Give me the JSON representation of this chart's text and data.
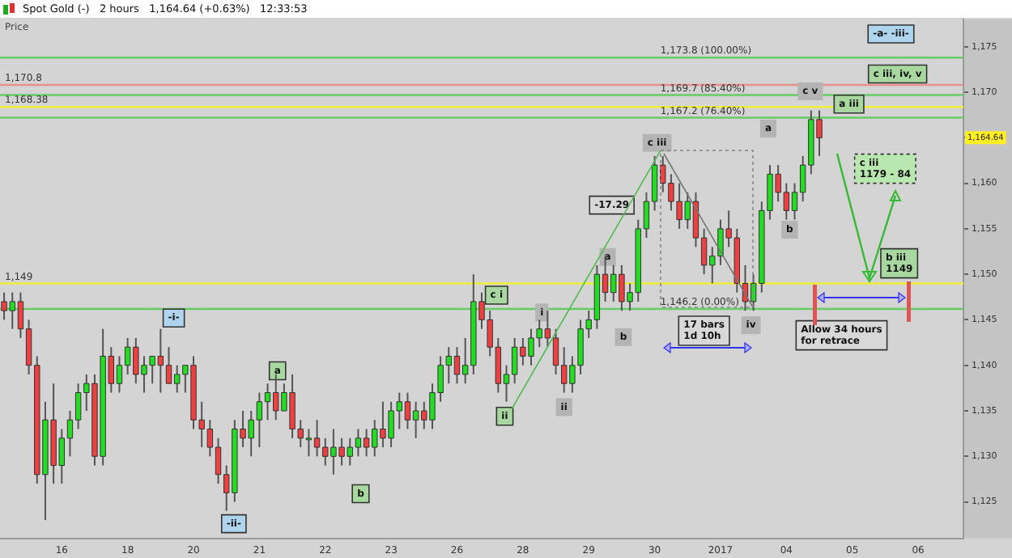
{
  "chart_data": {
    "type": "candlestick",
    "title": "Spot Gold (-)   2 hours   1,164.64 (+0.63%)   12:33:53",
    "ylabel": "Price",
    "categories": [
      null,
      null,
      null,
      null,
      null,
      null,
      null,
      "16",
      null,
      null,
      null,
      null,
      null,
      null,
      null,
      "18",
      null,
      null,
      null,
      null,
      null,
      null,
      null,
      "20",
      null,
      null,
      null,
      null,
      null,
      null,
      null,
      "21",
      null,
      null,
      null,
      null,
      null,
      null,
      null,
      "22",
      null,
      null,
      null,
      null,
      null,
      null,
      null,
      "23",
      null,
      null,
      null,
      null,
      null,
      null,
      null,
      "26",
      null,
      null,
      null,
      null,
      null,
      null,
      null,
      "28",
      null,
      null,
      null,
      null,
      null,
      null,
      null,
      "29",
      null,
      null,
      null,
      null,
      null,
      null,
      null,
      "30",
      null,
      null,
      null,
      null,
      null,
      null,
      null,
      "2017",
      null,
      null,
      null,
      null,
      null,
      null,
      null,
      "04",
      null,
      null,
      null,
      null,
      null,
      null,
      null,
      "05",
      null,
      null,
      null,
      null,
      null,
      null,
      null,
      "06",
      null,
      null,
      null,
      null,
      null
    ],
    "ohlc": [
      [
        1147,
        1148,
        1145,
        1146
      ],
      [
        1146,
        1148,
        1144,
        1147
      ],
      [
        1147,
        1148,
        1143,
        1144
      ],
      [
        1144,
        1145,
        1139,
        1140
      ],
      [
        1140,
        1141,
        1127,
        1128
      ],
      [
        1128,
        1136,
        1123,
        1134
      ],
      [
        1134,
        1138,
        1127,
        1129
      ],
      [
        1129,
        1133,
        1127,
        1132
      ],
      [
        1132,
        1135,
        1130,
        1134
      ],
      [
        1134,
        1138,
        1133,
        1137
      ],
      [
        1137,
        1139,
        1135,
        1138
      ],
      [
        1138,
        1139,
        1129,
        1130
      ],
      [
        1130,
        1144,
        1129,
        1141
      ],
      [
        1141,
        1142,
        1137,
        1138
      ],
      [
        1138,
        1141,
        1137,
        1140
      ],
      [
        1140,
        1143,
        1139,
        1142
      ],
      [
        1142,
        1143,
        1138,
        1139
      ],
      [
        1139,
        1141,
        1137,
        1140
      ],
      [
        1140,
        1141,
        1138,
        1141
      ],
      [
        1141,
        1144,
        1137,
        1140
      ],
      [
        1140,
        1142,
        1138,
        1138
      ],
      [
        1138,
        1140,
        1137,
        1139
      ],
      [
        1139,
        1140,
        1137,
        1140
      ],
      [
        1140,
        1141,
        1133,
        1134
      ],
      [
        1134,
        1136,
        1131,
        1133
      ],
      [
        1133,
        1134,
        1130,
        1131
      ],
      [
        1131,
        1132,
        1127,
        1128
      ],
      [
        1128,
        1129,
        1124,
        1126
      ],
      [
        1126,
        1134,
        1125,
        1133
      ],
      [
        1133,
        1135,
        1131,
        1132
      ],
      [
        1132,
        1135,
        1130,
        1134
      ],
      [
        1134,
        1137,
        1131,
        1136
      ],
      [
        1136,
        1138,
        1134,
        1137
      ],
      [
        1137,
        1139,
        1134,
        1135
      ],
      [
        1135,
        1138,
        1135,
        1137
      ],
      [
        1137,
        1139,
        1132,
        1133
      ],
      [
        1133,
        1134,
        1131,
        1132
      ],
      [
        1132,
        1133,
        1130,
        1132
      ],
      [
        1132,
        1134,
        1130,
        1131
      ],
      [
        1131,
        1132,
        1129,
        1130
      ],
      [
        1130,
        1133,
        1128,
        1131
      ],
      [
        1131,
        1132,
        1129,
        1130
      ],
      [
        1130,
        1132,
        1129,
        1131
      ],
      [
        1131,
        1133,
        1130,
        1132
      ],
      [
        1132,
        1133,
        1130,
        1131
      ],
      [
        1131,
        1134,
        1130,
        1133
      ],
      [
        1133,
        1136,
        1131,
        1132
      ],
      [
        1132,
        1136,
        1131,
        1135
      ],
      [
        1135,
        1137,
        1133,
        1136
      ],
      [
        1136,
        1137,
        1133,
        1134
      ],
      [
        1134,
        1136,
        1132,
        1135
      ],
      [
        1135,
        1136,
        1133,
        1134
      ],
      [
        1134,
        1138,
        1133,
        1137
      ],
      [
        1137,
        1141,
        1136,
        1140
      ],
      [
        1140,
        1142,
        1138,
        1141
      ],
      [
        1141,
        1142,
        1138,
        1139
      ],
      [
        1139,
        1143,
        1138,
        1140
      ],
      [
        1140,
        1150,
        1139,
        1147
      ],
      [
        1147,
        1148,
        1144,
        1145
      ],
      [
        1145,
        1146,
        1141,
        1142
      ],
      [
        1142,
        1143,
        1137,
        1138
      ],
      [
        1138,
        1140,
        1136,
        1139
      ],
      [
        1139,
        1143,
        1138,
        1142
      ],
      [
        1142,
        1143,
        1140,
        1141
      ],
      [
        1141,
        1144,
        1140,
        1143
      ],
      [
        1143,
        1145,
        1142,
        1144
      ],
      [
        1144,
        1146,
        1142,
        1143
      ],
      [
        1143,
        1144,
        1139,
        1140
      ],
      [
        1140,
        1142,
        1137,
        1138
      ],
      [
        1138,
        1141,
        1137,
        1140
      ],
      [
        1140,
        1145,
        1139,
        1144
      ],
      [
        1144,
        1146,
        1143,
        1145
      ],
      [
        1145,
        1151,
        1144,
        1150
      ],
      [
        1150,
        1152,
        1147,
        1148
      ],
      [
        1148,
        1151,
        1147,
        1150
      ],
      [
        1150,
        1151,
        1146,
        1147
      ],
      [
        1147,
        1149,
        1146,
        1148
      ],
      [
        1148,
        1156,
        1147,
        1155
      ],
      [
        1155,
        1159,
        1154,
        1158
      ],
      [
        1158,
        1163,
        1157,
        1162
      ],
      [
        1162,
        1163,
        1159,
        1160
      ],
      [
        1160,
        1161,
        1157,
        1158
      ],
      [
        1158,
        1160,
        1155,
        1156
      ],
      [
        1156,
        1159,
        1155,
        1158
      ],
      [
        1158,
        1159,
        1153,
        1154
      ],
      [
        1154,
        1155,
        1150,
        1151
      ],
      [
        1151,
        1153,
        1149,
        1152
      ],
      [
        1152,
        1156,
        1151,
        1155
      ],
      [
        1155,
        1157,
        1153,
        1154
      ],
      [
        1154,
        1155,
        1148,
        1149
      ],
      [
        1149,
        1151,
        1146,
        1147
      ],
      [
        1147,
        1150,
        1146,
        1149
      ],
      [
        1149,
        1158,
        1148,
        1157
      ],
      [
        1157,
        1162,
        1156,
        1161
      ],
      [
        1161,
        1162,
        1158,
        1159
      ],
      [
        1159,
        1160,
        1156,
        1157
      ],
      [
        1157,
        1160,
        1156,
        1159
      ],
      [
        1159,
        1163,
        1158,
        1162
      ],
      [
        1162,
        1168,
        1161,
        1167
      ],
      [
        1167,
        1168,
        1163,
        1165
      ],
      null,
      null,
      null,
      null,
      null,
      null,
      null,
      null,
      null,
      null,
      null,
      null,
      null,
      null,
      null,
      null,
      null
    ],
    "ylim": [
      1121,
      1178
    ],
    "yticks": [
      {
        "value": 1125,
        "label": "1,125"
      },
      {
        "value": 1130,
        "label": "1,130"
      },
      {
        "value": 1135,
        "label": "1,135"
      },
      {
        "value": 1140,
        "label": "1,140"
      },
      {
        "value": 1145,
        "label": "1,145"
      },
      {
        "value": 1150,
        "label": "1,150"
      },
      {
        "value": 1155,
        "label": "1,155"
      },
      {
        "value": 1160,
        "label": "1,160"
      },
      {
        "value": 1165,
        "label": null
      },
      {
        "value": 1170,
        "label": "1,170"
      },
      {
        "value": 1175,
        "label": "1,175"
      }
    ],
    "ref_lines": [
      {
        "axis": "y",
        "value": 1173.8,
        "label": "1,173.8 (100.00%)",
        "color": "#66cc66"
      },
      {
        "axis": "y",
        "value": 1170.8,
        "label": "1,170.8",
        "color": "#e89090"
      },
      {
        "axis": "y",
        "value": 1169.7,
        "label": "1,169.7 (85.40%)",
        "color": "#66cc66"
      },
      {
        "axis": "y",
        "value": 1168.38,
        "label": "1,168.38",
        "color": "#eeee33"
      },
      {
        "axis": "y",
        "value": 1167.2,
        "label": "1,167.2 (76.40%)",
        "color": "#66cc66"
      },
      {
        "axis": "y",
        "value": 1149,
        "label": "1,149",
        "color": "#eeee33"
      },
      {
        "axis": "y",
        "value": 1146.2,
        "label": "1,146.2 (0.00%)",
        "color": "#66cc66"
      }
    ],
    "annotations": [
      "-i-",
      "-ii-",
      "a",
      "b",
      "c i",
      {
        "text": "ii",
        "y": 1136
      },
      "i",
      "ii",
      "a",
      "b",
      {
        "text": "c iii",
        "y": 1163
      },
      "-17.29",
      "a",
      "b",
      "c v",
      "a iii",
      {
        "text": "iv",
        "y": 1146
      },
      "17 bars\n1d 10h",
      "c iii\n1179 - 84",
      "b iii\n1149",
      "Allow 34 hours\nfor retrace",
      "-a- -iii-",
      "c iii, iv, v",
      "1,164.64"
    ]
  }
}
